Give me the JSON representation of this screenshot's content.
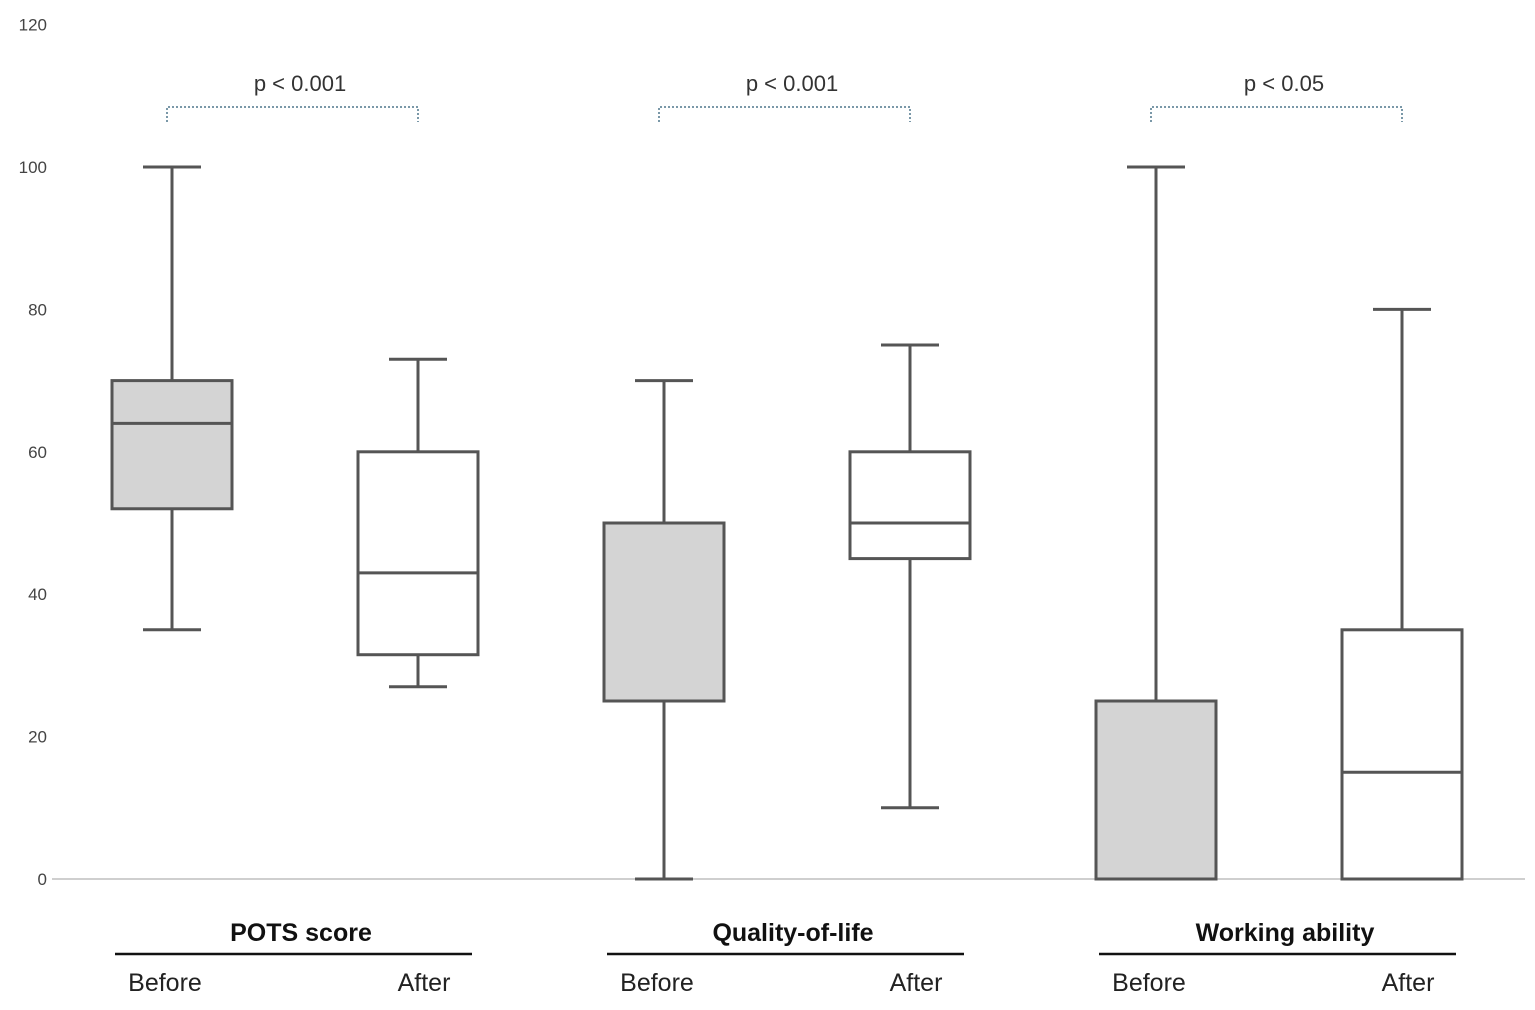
{
  "chart_data": {
    "type": "boxplot",
    "title": "",
    "xlabel": "",
    "ylabel": "",
    "ylim": [
      0,
      120
    ],
    "yticks": [
      "0",
      "20",
      "40",
      "60",
      "80",
      "100",
      "120"
    ],
    "grid": false,
    "legend": "none",
    "colors": {
      "before_fill": "#d4d4d4",
      "after_fill": "#ffffff",
      "stroke": "#555555",
      "bracket": "#7a98a8"
    },
    "groups": [
      {
        "name": "POTS score",
        "significance": "p < 0.001",
        "boxes": [
          {
            "label": "Before",
            "min": 35,
            "q1": 52,
            "median": 64,
            "q3": 70,
            "max": 100
          },
          {
            "label": "After",
            "min": 27,
            "q1": 31.5,
            "median": 43,
            "q3": 60,
            "max": 73
          }
        ]
      },
      {
        "name": "Quality-of-life",
        "significance": "p < 0.001",
        "boxes": [
          {
            "label": "Before",
            "min": 0,
            "q1": 25,
            "median": 25,
            "q3": 50,
            "max": 70
          },
          {
            "label": "After",
            "min": 10,
            "q1": 45,
            "median": 50,
            "q3": 60,
            "max": 75
          }
        ]
      },
      {
        "name": "Working ability",
        "significance": "p < 0.05",
        "boxes": [
          {
            "label": "Before",
            "min": 0,
            "q1": 0,
            "median": 0,
            "q3": 25,
            "max": 100
          },
          {
            "label": "After",
            "min": 0,
            "q1": 0,
            "median": 15,
            "q3": 35,
            "max": 80
          }
        ]
      }
    ]
  }
}
